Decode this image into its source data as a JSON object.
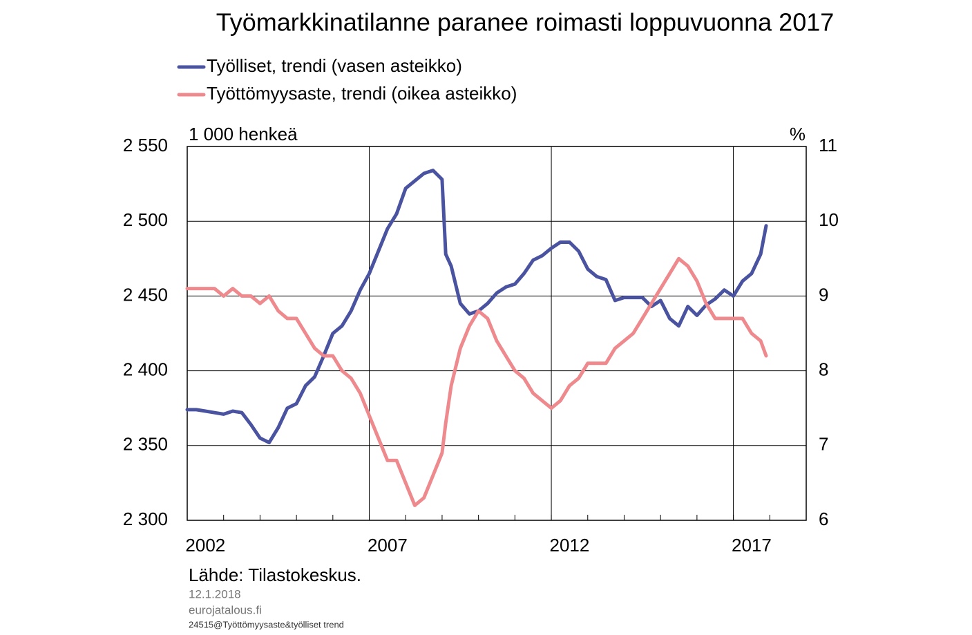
{
  "chart_data": {
    "type": "line",
    "title": "Työmarkkinatilanne paranee roimasti loppuvuonna 2017",
    "y_unit_label": "1 000 henkeä",
    "y2_unit_label": "%",
    "x": [
      2002.0,
      2002.25,
      2002.5,
      2002.75,
      2003.0,
      2003.25,
      2003.5,
      2003.75,
      2004.0,
      2004.25,
      2004.5,
      2004.75,
      2005.0,
      2005.25,
      2005.5,
      2005.75,
      2006.0,
      2006.25,
      2006.5,
      2006.75,
      2007.0,
      2007.25,
      2007.5,
      2007.75,
      2008.0,
      2008.25,
      2008.5,
      2008.75,
      2009.0,
      2009.1,
      2009.25,
      2009.5,
      2009.75,
      2010.0,
      2010.25,
      2010.5,
      2010.75,
      2011.0,
      2011.25,
      2011.5,
      2011.75,
      2012.0,
      2012.25,
      2012.5,
      2012.75,
      2013.0,
      2013.25,
      2013.5,
      2013.75,
      2014.0,
      2014.25,
      2014.5,
      2014.75,
      2015.0,
      2015.25,
      2015.5,
      2015.75,
      2016.0,
      2016.25,
      2016.5,
      2016.75,
      2017.0,
      2017.25,
      2017.5,
      2017.75,
      2017.9
    ],
    "series": [
      {
        "name": "Työlliset, trendi (vasen asteikko)",
        "color": "#4a539f",
        "axis": "y",
        "values": [
          2374,
          2374,
          2373,
          2372,
          2371,
          2373,
          2372,
          2364,
          2355,
          2352,
          2362,
          2375,
          2378,
          2390,
          2396,
          2410,
          2425,
          2430,
          2440,
          2454,
          2465,
          2480,
          2495,
          2505,
          2522,
          2527,
          2532,
          2534,
          2528,
          2478,
          2470,
          2445,
          2438,
          2440,
          2445,
          2452,
          2456,
          2458,
          2465,
          2474,
          2477,
          2482,
          2486,
          2486,
          2480,
          2468,
          2463,
          2461,
          2447,
          2449,
          2449,
          2449,
          2443,
          2447,
          2435,
          2430,
          2443,
          2437,
          2444,
          2448,
          2454,
          2450,
          2460,
          2465,
          2478,
          2497
        ]
      },
      {
        "name": "Työttömyysaste, trendi (oikea asteikko)",
        "color": "#ee8a8e",
        "axis": "y2",
        "values": [
          9.1,
          9.1,
          9.1,
          9.1,
          9.0,
          9.1,
          9.0,
          9.0,
          8.9,
          9.0,
          8.8,
          8.7,
          8.7,
          8.5,
          8.3,
          8.2,
          8.2,
          8.0,
          7.9,
          7.7,
          7.4,
          7.1,
          6.8,
          6.8,
          6.5,
          6.2,
          6.3,
          6.6,
          6.9,
          7.3,
          7.8,
          8.3,
          8.6,
          8.8,
          8.7,
          8.4,
          8.2,
          8.0,
          7.9,
          7.7,
          7.6,
          7.5,
          7.6,
          7.8,
          7.9,
          8.1,
          8.1,
          8.1,
          8.3,
          8.4,
          8.5,
          8.7,
          8.9,
          9.1,
          9.3,
          9.5,
          9.4,
          9.2,
          8.9,
          8.7,
          8.7,
          8.7,
          8.7,
          8.5,
          8.4,
          8.2
        ]
      }
    ],
    "xlim": [
      2002,
      2019
    ],
    "xticks": [
      {
        "value": 2002.5,
        "label": "2002"
      },
      {
        "value": 2007.5,
        "label": "2007"
      },
      {
        "value": 2012.5,
        "label": "2012"
      },
      {
        "value": 2017.5,
        "label": "2017"
      }
    ],
    "xgrid": [
      2007,
      2012,
      2017
    ],
    "xtick_marks": [
      2003,
      2004,
      2005,
      2006,
      2007,
      2008,
      2009,
      2010,
      2011,
      2012,
      2013,
      2014,
      2015,
      2016,
      2017,
      2018
    ],
    "ylim": [
      2300,
      2550
    ],
    "yticks": [
      {
        "value": 2300,
        "label": "2 300"
      },
      {
        "value": 2350,
        "label": "2 350"
      },
      {
        "value": 2400,
        "label": "2 400"
      },
      {
        "value": 2450,
        "label": "2 450"
      },
      {
        "value": 2500,
        "label": "2 500"
      },
      {
        "value": 2550,
        "label": "2 550"
      }
    ],
    "y2lim": [
      6,
      11
    ],
    "y2ticks": [
      6,
      7,
      8,
      9,
      10,
      11
    ],
    "grid": true,
    "source": "Lähde: Tilastokeskus.",
    "date": "12.1.2018",
    "website": "eurojatalous.fi",
    "file_id": "24515@Työttömyysaste&työlliset  trend"
  }
}
